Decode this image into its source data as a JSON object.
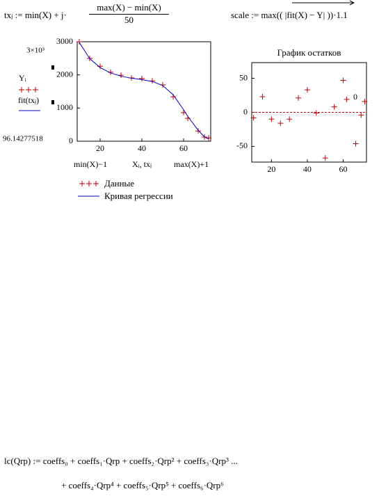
{
  "formulas": {
    "tx": {
      "lhs": "txⱼ :=  min(X) + j·",
      "num": "max(X) − min(X)",
      "den": "50"
    },
    "scale": "scale :=  max(( |fit(X) − Y| ))·1.1",
    "lc_line1": "lc(Qrp) :=  coeffs₀ + coeffs₁·Qrp + coeffs₂·Qrp² + coeffs₃·Qrp³ ...",
    "lc_line2": "+ coeffs₄·Qrp⁴ + coeffs₅·Qrp⁵ + coeffs₆·Qrp⁶"
  },
  "chart_data": [
    {
      "type": "line",
      "y_top_label": "3×10³",
      "y_bottom_label": "96.14277518",
      "y_label": [
        "Yᵢ",
        "fit(txⱼ)"
      ],
      "x_left_label": "min(X)−1",
      "x_label": "Xᵢ, txⱼ",
      "x_right_label": "max(X)+1",
      "x": [
        10,
        15,
        20,
        25,
        30,
        35,
        40,
        45,
        50,
        55,
        60,
        62,
        67,
        70,
        72
      ],
      "series": [
        {
          "name": "Данные",
          "color": "#c00000",
          "mode": "markers",
          "values": [
            3000,
            2500,
            2260,
            2080,
            1990,
            1910,
            1890,
            1820,
            1700,
            1340,
            860,
            690,
            310,
            125,
            100
          ]
        },
        {
          "name": "Кривая регрессии",
          "color": "#0000c0",
          "mode": "line",
          "values": [
            2980,
            2490,
            2220,
            2060,
            1960,
            1900,
            1860,
            1800,
            1680,
            1400,
            950,
            750,
            330,
            130,
            70
          ]
        }
      ],
      "xlim": [
        9,
        73
      ],
      "xticks": [
        20,
        40,
        60
      ],
      "ylim": [
        0,
        3000
      ],
      "yticks": [
        0,
        1000,
        2000,
        3000
      ]
    },
    {
      "type": "scatter",
      "title": "График остатков",
      "x": [
        10,
        15,
        20,
        25,
        30,
        35,
        40,
        45,
        50,
        55,
        60,
        62,
        67,
        70,
        72
      ],
      "series": [
        {
          "color": "#c00000",
          "mode": "markers",
          "values": [
            -8,
            23,
            -10,
            -16,
            -10,
            21,
            33,
            -1,
            -67,
            8,
            47,
            19,
            -46,
            -4,
            16
          ]
        }
      ],
      "hline": 0,
      "hline_color": "#c00000",
      "annotation": "0",
      "xlim": [
        9,
        73
      ],
      "xticks": [
        20,
        40,
        60
      ],
      "ylim": [
        -73,
        73
      ],
      "yticks": [
        -50,
        0,
        50
      ]
    }
  ]
}
